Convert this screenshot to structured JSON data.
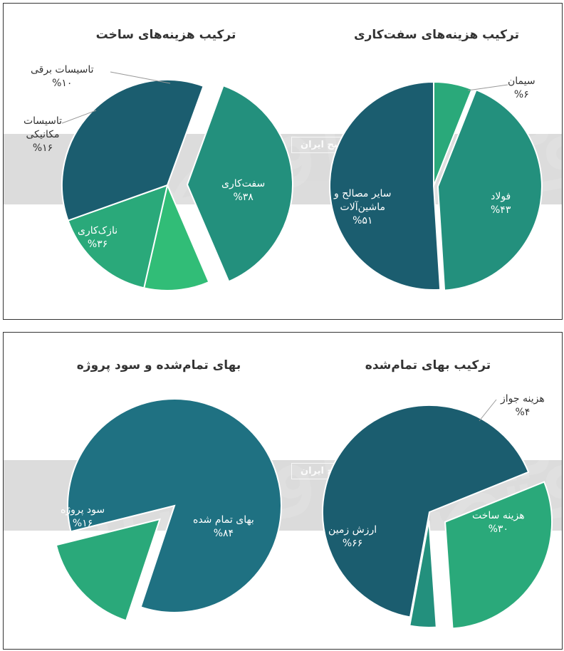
{
  "watermark_text": "دنیای اقتصاد",
  "band_label": "روزنامه صبح ایران",
  "colors": {
    "dark_teal": "#1b5d6f",
    "mid_teal": "#1f7182",
    "green_teal": "#23907d",
    "emerald": "#2aa97a",
    "light_green": "#31bd77"
  },
  "chart_data": [
    {
      "type": "pie",
      "title": "ترکیب هزینه‌های ساخت",
      "slices": [
        {
          "label": "سفت‌کاری",
          "value": 38,
          "value_text": "%۳۸",
          "color": "#23907d"
        },
        {
          "label": "تاسیسات برقی",
          "value": 10,
          "value_text": "%۱۰",
          "color": "#31bd77"
        },
        {
          "label": "تاسیسات مکانیکی",
          "value": 16,
          "value_text": "%۱۶",
          "color": "#2aa97a"
        },
        {
          "label": "نازک‌کاری",
          "value": 36,
          "value_text": "%۳۶",
          "color": "#1b5d6f"
        }
      ]
    },
    {
      "type": "pie",
      "title": "ترکیب هزینه‌های سفت‌کاری",
      "slices": [
        {
          "label": "سیمان",
          "value": 6,
          "value_text": "%۶",
          "color": "#2aa97a"
        },
        {
          "label": "فولاد",
          "value": 43,
          "value_text": "%۴۳",
          "color": "#23907d"
        },
        {
          "label": "سایر مصالح و ماشین‌آلات",
          "value": 51,
          "value_text": "%۵۱",
          "color": "#1b5d6f"
        }
      ]
    },
    {
      "type": "pie",
      "title": "بهای تمام‌شده و سود پروژه",
      "slices": [
        {
          "label": "بهای تمام شده",
          "value": 84,
          "value_text": "%۸۴",
          "color": "#1f7182"
        },
        {
          "label": "سود پروژه",
          "value": 16,
          "value_text": "%۱۶",
          "color": "#2aa97a"
        }
      ]
    },
    {
      "type": "pie",
      "title": "ترکیب بهای تمام‌شده",
      "slices": [
        {
          "label": "ارزش زمین",
          "value": 66,
          "value_text": "%۶۶",
          "color": "#1b5d6f"
        },
        {
          "label": "هزینه جواز",
          "value": 4,
          "value_text": "%۴",
          "color": "#23907d"
        },
        {
          "label": "هزینه ساخت",
          "value": 30,
          "value_text": "%۳۰",
          "color": "#2aa97a"
        }
      ]
    }
  ]
}
